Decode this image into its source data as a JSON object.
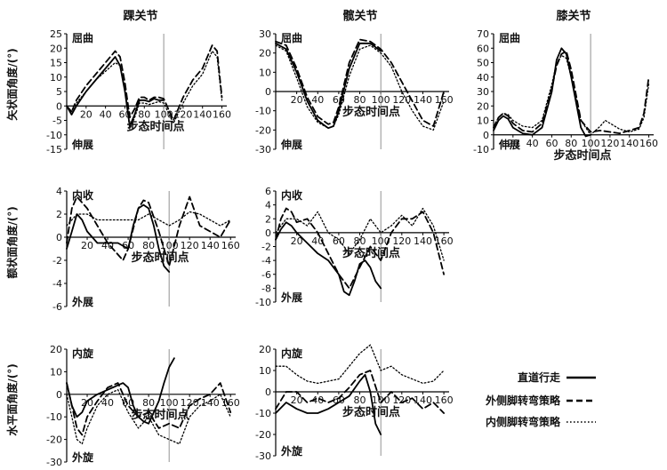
{
  "columns": [
    "踝关节",
    "髋关节",
    "膝关节"
  ],
  "row_labels": [
    "矢状面角度/(°)",
    "额状面角度/(°)",
    "水平面角度/(°)"
  ],
  "xlabel": "步态时间点",
  "legend": {
    "entries": [
      {
        "label": "直道行走",
        "style": "solid"
      },
      {
        "label": "外侧脚转弯策略",
        "style": "dashed"
      },
      {
        "label": "内侧脚转弯策略",
        "style": "dotted"
      }
    ]
  },
  "chart_data": [
    {
      "type": "line",
      "joint": "踝关节",
      "plane": "矢状面",
      "ylabel": "矢状面角度/(°)",
      "xlabel": "步态时间点",
      "top_label": "屈曲",
      "bottom_label": "伸展",
      "ylim": [
        -15,
        25
      ],
      "yticks": [
        -15,
        -10,
        -5,
        0,
        5,
        10,
        15,
        20,
        25
      ],
      "xlim": [
        0,
        165
      ],
      "xticks": [
        20,
        40,
        60,
        80,
        100,
        120,
        140,
        160
      ],
      "vline": 100,
      "series": [
        {
          "style": "solid",
          "x": [
            0,
            5,
            10,
            20,
            30,
            40,
            50,
            55,
            60,
            65,
            70,
            75,
            80,
            85,
            90,
            95,
            100
          ],
          "y": [
            0,
            -3,
            0,
            5,
            9,
            13,
            17,
            14,
            5,
            -7,
            -3,
            2,
            2,
            1.5,
            2.5,
            2,
            2
          ]
        },
        {
          "style": "dashed",
          "x": [
            0,
            5,
            10,
            20,
            30,
            40,
            50,
            55,
            60,
            65,
            70,
            75,
            80,
            85,
            90,
            95,
            100,
            110,
            120,
            130,
            140,
            150,
            155,
            160
          ],
          "y": [
            0,
            -2,
            2,
            7,
            11,
            15,
            19,
            17,
            8,
            -4,
            -1,
            3,
            3,
            2,
            3,
            3,
            2.5,
            -5,
            3,
            9,
            13,
            21,
            19,
            3
          ]
        },
        {
          "style": "dotted",
          "x": [
            0,
            5,
            10,
            20,
            30,
            40,
            50,
            55,
            60,
            65,
            70,
            75,
            80,
            85,
            90,
            95,
            100,
            110,
            120,
            130,
            140,
            150,
            155,
            160
          ],
          "y": [
            0,
            -2,
            1,
            5,
            9,
            12,
            15,
            14,
            6,
            -8,
            -4,
            1,
            1,
            0.5,
            1,
            1.5,
            1,
            -6,
            1,
            7,
            11,
            19,
            17,
            2
          ]
        }
      ]
    },
    {
      "type": "line",
      "joint": "髋关节",
      "plane": "矢状面",
      "ylabel": "",
      "xlabel": "步态时间点",
      "top_label": "屈曲",
      "bottom_label": "伸展",
      "ylim": [
        -30,
        30
      ],
      "yticks": [
        -30,
        -20,
        -10,
        0,
        10,
        20,
        30
      ],
      "xlim": [
        0,
        165
      ],
      "xticks": [
        20,
        40,
        60,
        80,
        100,
        120,
        140,
        160
      ],
      "vline": 100,
      "series": [
        {
          "style": "solid",
          "x": [
            0,
            10,
            20,
            30,
            40,
            50,
            55,
            60,
            70,
            80,
            90,
            100
          ],
          "y": [
            25,
            22,
            10,
            -5,
            -15,
            -19,
            -18,
            -10,
            12,
            25,
            25,
            21
          ]
        },
        {
          "style": "dashed",
          "x": [
            0,
            10,
            20,
            30,
            40,
            50,
            55,
            60,
            70,
            80,
            90,
            100,
            110,
            120,
            130,
            140,
            150,
            160
          ],
          "y": [
            26,
            24,
            12,
            -3,
            -13,
            -17,
            -16,
            -8,
            15,
            27,
            26,
            22,
            15,
            5,
            -5,
            -15,
            -18,
            0
          ]
        },
        {
          "style": "dotted",
          "x": [
            0,
            10,
            20,
            30,
            40,
            50,
            55,
            60,
            70,
            80,
            90,
            100,
            110,
            120,
            130,
            140,
            150,
            160
          ],
          "y": [
            24,
            21,
            7,
            -8,
            -16,
            -19,
            -18,
            -12,
            8,
            22,
            24,
            20,
            13,
            0,
            -10,
            -18,
            -20,
            -5
          ]
        }
      ]
    },
    {
      "type": "line",
      "joint": "膝关节",
      "plane": "矢状面",
      "ylabel": "",
      "xlabel": "步态时间点",
      "top_label": "屈曲",
      "bottom_label": "伸展",
      "ylim": [
        -10,
        70
      ],
      "yticks": [
        -10,
        0,
        10,
        20,
        30,
        40,
        50,
        60,
        70
      ],
      "xlim": [
        0,
        165
      ],
      "xticks": [
        20,
        40,
        60,
        80,
        100,
        120,
        140,
        160
      ],
      "vline": 100,
      "series": [
        {
          "style": "solid",
          "x": [
            0,
            5,
            10,
            15,
            20,
            30,
            40,
            50,
            60,
            65,
            70,
            75,
            80,
            90,
            95,
            100
          ],
          "y": [
            3,
            10,
            13,
            11,
            5,
            1,
            0,
            5,
            30,
            52,
            60,
            56,
            40,
            5,
            -1,
            0
          ]
        },
        {
          "style": "dashed",
          "x": [
            0,
            5,
            10,
            15,
            20,
            30,
            40,
            50,
            60,
            65,
            70,
            75,
            80,
            90,
            100,
            110,
            120,
            130,
            140,
            150,
            155,
            160
          ],
          "y": [
            5,
            12,
            15,
            13,
            8,
            3,
            2,
            8,
            32,
            48,
            56,
            58,
            45,
            10,
            2,
            3,
            2,
            1,
            3,
            5,
            15,
            40
          ]
        },
        {
          "style": "dotted",
          "x": [
            0,
            5,
            10,
            15,
            20,
            30,
            40,
            50,
            60,
            65,
            70,
            75,
            80,
            90,
            100,
            110,
            115,
            120,
            130,
            140,
            150,
            155,
            160
          ],
          "y": [
            6,
            12,
            15,
            14,
            10,
            6,
            5,
            10,
            35,
            50,
            55,
            53,
            40,
            10,
            0,
            6,
            10,
            8,
            4,
            2,
            4,
            12,
            35
          ]
        }
      ]
    },
    {
      "type": "line",
      "joint": "踝关节",
      "plane": "额状面",
      "ylabel": "额状面角度/(°)",
      "xlabel": "步态时间点",
      "top_label": "内收",
      "bottom_label": "外展",
      "ylim": [
        -6,
        4
      ],
      "yticks": [
        -6,
        -4,
        -2,
        0,
        2,
        4
      ],
      "xlim": [
        0,
        165
      ],
      "xticks": [
        20,
        40,
        60,
        80,
        100,
        120,
        140,
        160
      ],
      "vline": 100,
      "series": [
        {
          "style": "solid",
          "x": [
            0,
            5,
            10,
            15,
            20,
            30,
            40,
            50,
            60,
            65,
            70,
            75,
            80,
            85,
            90,
            95,
            100
          ],
          "y": [
            -1,
            0.5,
            2,
            1.5,
            0.5,
            -0.5,
            -0.5,
            -0.5,
            -1,
            1,
            2.5,
            2.8,
            2.5,
            1,
            -1,
            -2.5,
            -3
          ]
        },
        {
          "style": "dashed",
          "x": [
            0,
            5,
            10,
            20,
            30,
            40,
            50,
            55,
            60,
            70,
            75,
            80,
            90,
            100,
            110,
            120,
            130,
            140,
            150,
            160
          ],
          "y": [
            -0.5,
            2.5,
            3.5,
            2.5,
            1,
            -0.5,
            -1.5,
            -2,
            -1,
            2.5,
            3.2,
            3,
            0.5,
            -2.5,
            1,
            3.5,
            1,
            0.5,
            0,
            1.5
          ]
        },
        {
          "style": "dotted",
          "x": [
            0,
            10,
            20,
            30,
            40,
            50,
            60,
            70,
            80,
            90,
            100,
            110,
            120,
            130,
            140,
            150,
            160
          ],
          "y": [
            1,
            2,
            2,
            1.5,
            1.5,
            1.5,
            1.5,
            1.5,
            2,
            1.5,
            1,
            1.5,
            2.2,
            2,
            1.5,
            1,
            1.5
          ]
        }
      ]
    },
    {
      "type": "line",
      "joint": "髋关节",
      "plane": "额状面",
      "ylabel": "",
      "xlabel": "步态时间点",
      "top_label": "内收",
      "bottom_label": "外展",
      "ylim": [
        -10,
        6
      ],
      "yticks": [
        -10,
        -8,
        -6,
        -4,
        -2,
        0,
        2,
        4,
        6
      ],
      "xlim": [
        0,
        165
      ],
      "xticks": [
        20,
        40,
        60,
        80,
        100,
        120,
        140,
        160
      ],
      "vline": 100,
      "series": [
        {
          "style": "solid",
          "x": [
            0,
            5,
            10,
            15,
            20,
            30,
            40,
            50,
            60,
            65,
            70,
            75,
            80,
            85,
            90,
            95,
            100
          ],
          "y": [
            -1,
            0.5,
            1.5,
            1,
            0,
            -1.5,
            -3,
            -4,
            -6,
            -8.5,
            -9,
            -7,
            -4.5,
            -4,
            -5,
            -7,
            -8
          ]
        },
        {
          "style": "dashed",
          "x": [
            0,
            5,
            10,
            15,
            20,
            30,
            40,
            50,
            60,
            70,
            80,
            90,
            100,
            110,
            120,
            130,
            140,
            150,
            160
          ],
          "y": [
            -1,
            2,
            3.5,
            3,
            1.5,
            2,
            0,
            -3,
            -6,
            -8,
            -5,
            -2,
            -4,
            0,
            2,
            2,
            3,
            0,
            -6
          ]
        },
        {
          "style": "dotted",
          "x": [
            0,
            10,
            20,
            30,
            40,
            50,
            60,
            70,
            80,
            90,
            100,
            110,
            120,
            130,
            140,
            150,
            160
          ],
          "y": [
            0,
            2,
            2,
            1,
            3,
            0,
            -1,
            -3,
            -1,
            2,
            0,
            1,
            2.5,
            1,
            3.5,
            1,
            -4
          ]
        }
      ]
    },
    {
      "type": "line",
      "joint": "踝关节",
      "plane": "水平面",
      "ylabel": "水平面角度/(°)",
      "xlabel": "步态时间点",
      "top_label": "内旋",
      "bottom_label": "外旋",
      "ylim": [
        -30,
        20
      ],
      "yticks": [
        -30,
        -20,
        -10,
        0,
        10,
        20
      ],
      "xlim": [
        0,
        165
      ],
      "xticks": [
        20,
        40,
        60,
        80,
        100,
        120,
        140,
        160
      ],
      "vline": 100,
      "series": [
        {
          "style": "solid",
          "x": [
            0,
            5,
            10,
            15,
            20,
            30,
            40,
            50,
            55,
            60,
            65,
            70,
            75,
            80,
            85,
            90,
            95,
            100,
            105
          ],
          "y": [
            5,
            -5,
            -10,
            -8,
            -3,
            0,
            2,
            4,
            5,
            3,
            -5,
            -10,
            -12,
            -13,
            -8,
            -3,
            5,
            12,
            16
          ]
        },
        {
          "style": "dashed",
          "x": [
            0,
            5,
            10,
            15,
            20,
            30,
            40,
            50,
            60,
            70,
            80,
            90,
            100,
            110,
            120,
            130,
            140,
            150,
            160
          ],
          "y": [
            5,
            -5,
            -15,
            -18,
            -10,
            -3,
            3,
            5,
            -5,
            -10,
            -8,
            -15,
            -13,
            -15,
            -5,
            -2,
            0,
            5,
            -8
          ]
        },
        {
          "style": "dotted",
          "x": [
            0,
            5,
            10,
            15,
            20,
            30,
            40,
            50,
            60,
            70,
            80,
            90,
            100,
            110,
            120,
            130,
            140,
            150,
            160
          ],
          "y": [
            0,
            -10,
            -20,
            -22,
            -15,
            -5,
            0,
            2,
            -8,
            -15,
            -10,
            -18,
            -20,
            -22,
            -10,
            -5,
            -3,
            0,
            -10
          ]
        }
      ]
    },
    {
      "type": "line",
      "joint": "髋关节",
      "plane": "水平面",
      "ylabel": "",
      "xlabel": "步态时间点",
      "top_label": "内旋",
      "bottom_label": "外旋",
      "ylim": [
        -30,
        20
      ],
      "yticks": [
        -30,
        -20,
        -10,
        0,
        10,
        20
      ],
      "xlim": [
        0,
        165
      ],
      "xticks": [
        20,
        40,
        60,
        80,
        100,
        120,
        140,
        160
      ],
      "vline": 100,
      "series": [
        {
          "style": "solid",
          "x": [
            0,
            10,
            20,
            30,
            40,
            50,
            60,
            70,
            80,
            85,
            90,
            95,
            100
          ],
          "y": [
            -10,
            -5,
            -8,
            -10,
            -10,
            -8,
            -5,
            -2,
            5,
            8,
            0,
            -15,
            -20
          ]
        },
        {
          "style": "dashed",
          "x": [
            0,
            10,
            20,
            30,
            40,
            50,
            60,
            70,
            80,
            90,
            100,
            110,
            120,
            130,
            140,
            150,
            160
          ],
          "y": [
            -8,
            0,
            0,
            -5,
            -3,
            -5,
            -3,
            2,
            8,
            10,
            -5,
            0,
            -5,
            -3,
            -8,
            -5,
            -10
          ]
        },
        {
          "style": "dotted",
          "x": [
            0,
            10,
            20,
            30,
            40,
            50,
            60,
            70,
            80,
            90,
            100,
            110,
            120,
            130,
            140,
            150,
            160
          ],
          "y": [
            12,
            12,
            8,
            5,
            4,
            5,
            6,
            12,
            18,
            22,
            10,
            12,
            8,
            6,
            4,
            5,
            10
          ]
        }
      ]
    }
  ]
}
